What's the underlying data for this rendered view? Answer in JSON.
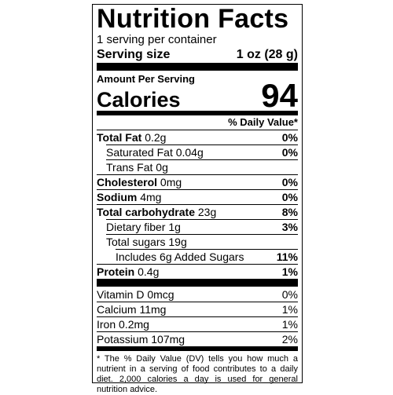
{
  "header": {
    "title": "Nutrition Facts",
    "servings": "1 serving per container",
    "serving_size_label": "Serving size",
    "serving_size": "1 oz (28 g)"
  },
  "calories": {
    "amount_label": "Amount Per Serving",
    "label": "Calories",
    "value": "94"
  },
  "daily_value_header": "% Daily Value*",
  "nutrients": [
    {
      "name": "Total Fat",
      "amount": "0.2g",
      "dv": "0%"
    },
    {
      "name": "Saturated Fat",
      "amount": "0.04g",
      "dv": "0%"
    },
    {
      "name": "Trans Fat",
      "amount": "0g"
    },
    {
      "name": "Cholesterol",
      "amount": "0mg",
      "dv": "0%"
    },
    {
      "name": "Sodium",
      "amount": "4mg",
      "dv": "0%"
    },
    {
      "name": "Total carbohydrate",
      "amount": "23g",
      "dv": "8%"
    },
    {
      "name": "Dietary fiber",
      "amount": "1g",
      "dv": "3%"
    },
    {
      "name": "Total sugars",
      "amount": "19g"
    },
    {
      "name": "Includes 6g Added Sugars",
      "dv": "11%"
    },
    {
      "name": "Protein",
      "amount": "0.4g",
      "dv": "1%"
    }
  ],
  "vitamins": [
    {
      "name": "Vitamin D",
      "amount": "0mcg",
      "dv": "0%"
    },
    {
      "name": "Calcium",
      "amount": "11mg",
      "dv": "1%"
    },
    {
      "name": "Iron",
      "amount": "0.2mg",
      "dv": "1%"
    },
    {
      "name": "Potassium",
      "amount": "107mg",
      "dv": "2%"
    }
  ],
  "footnote": "* The % Daily Value (DV) tells you how much a nutrient in a serving of food contributes to a daily diet. 2,000 calories a day is used for general nutrition advice."
}
